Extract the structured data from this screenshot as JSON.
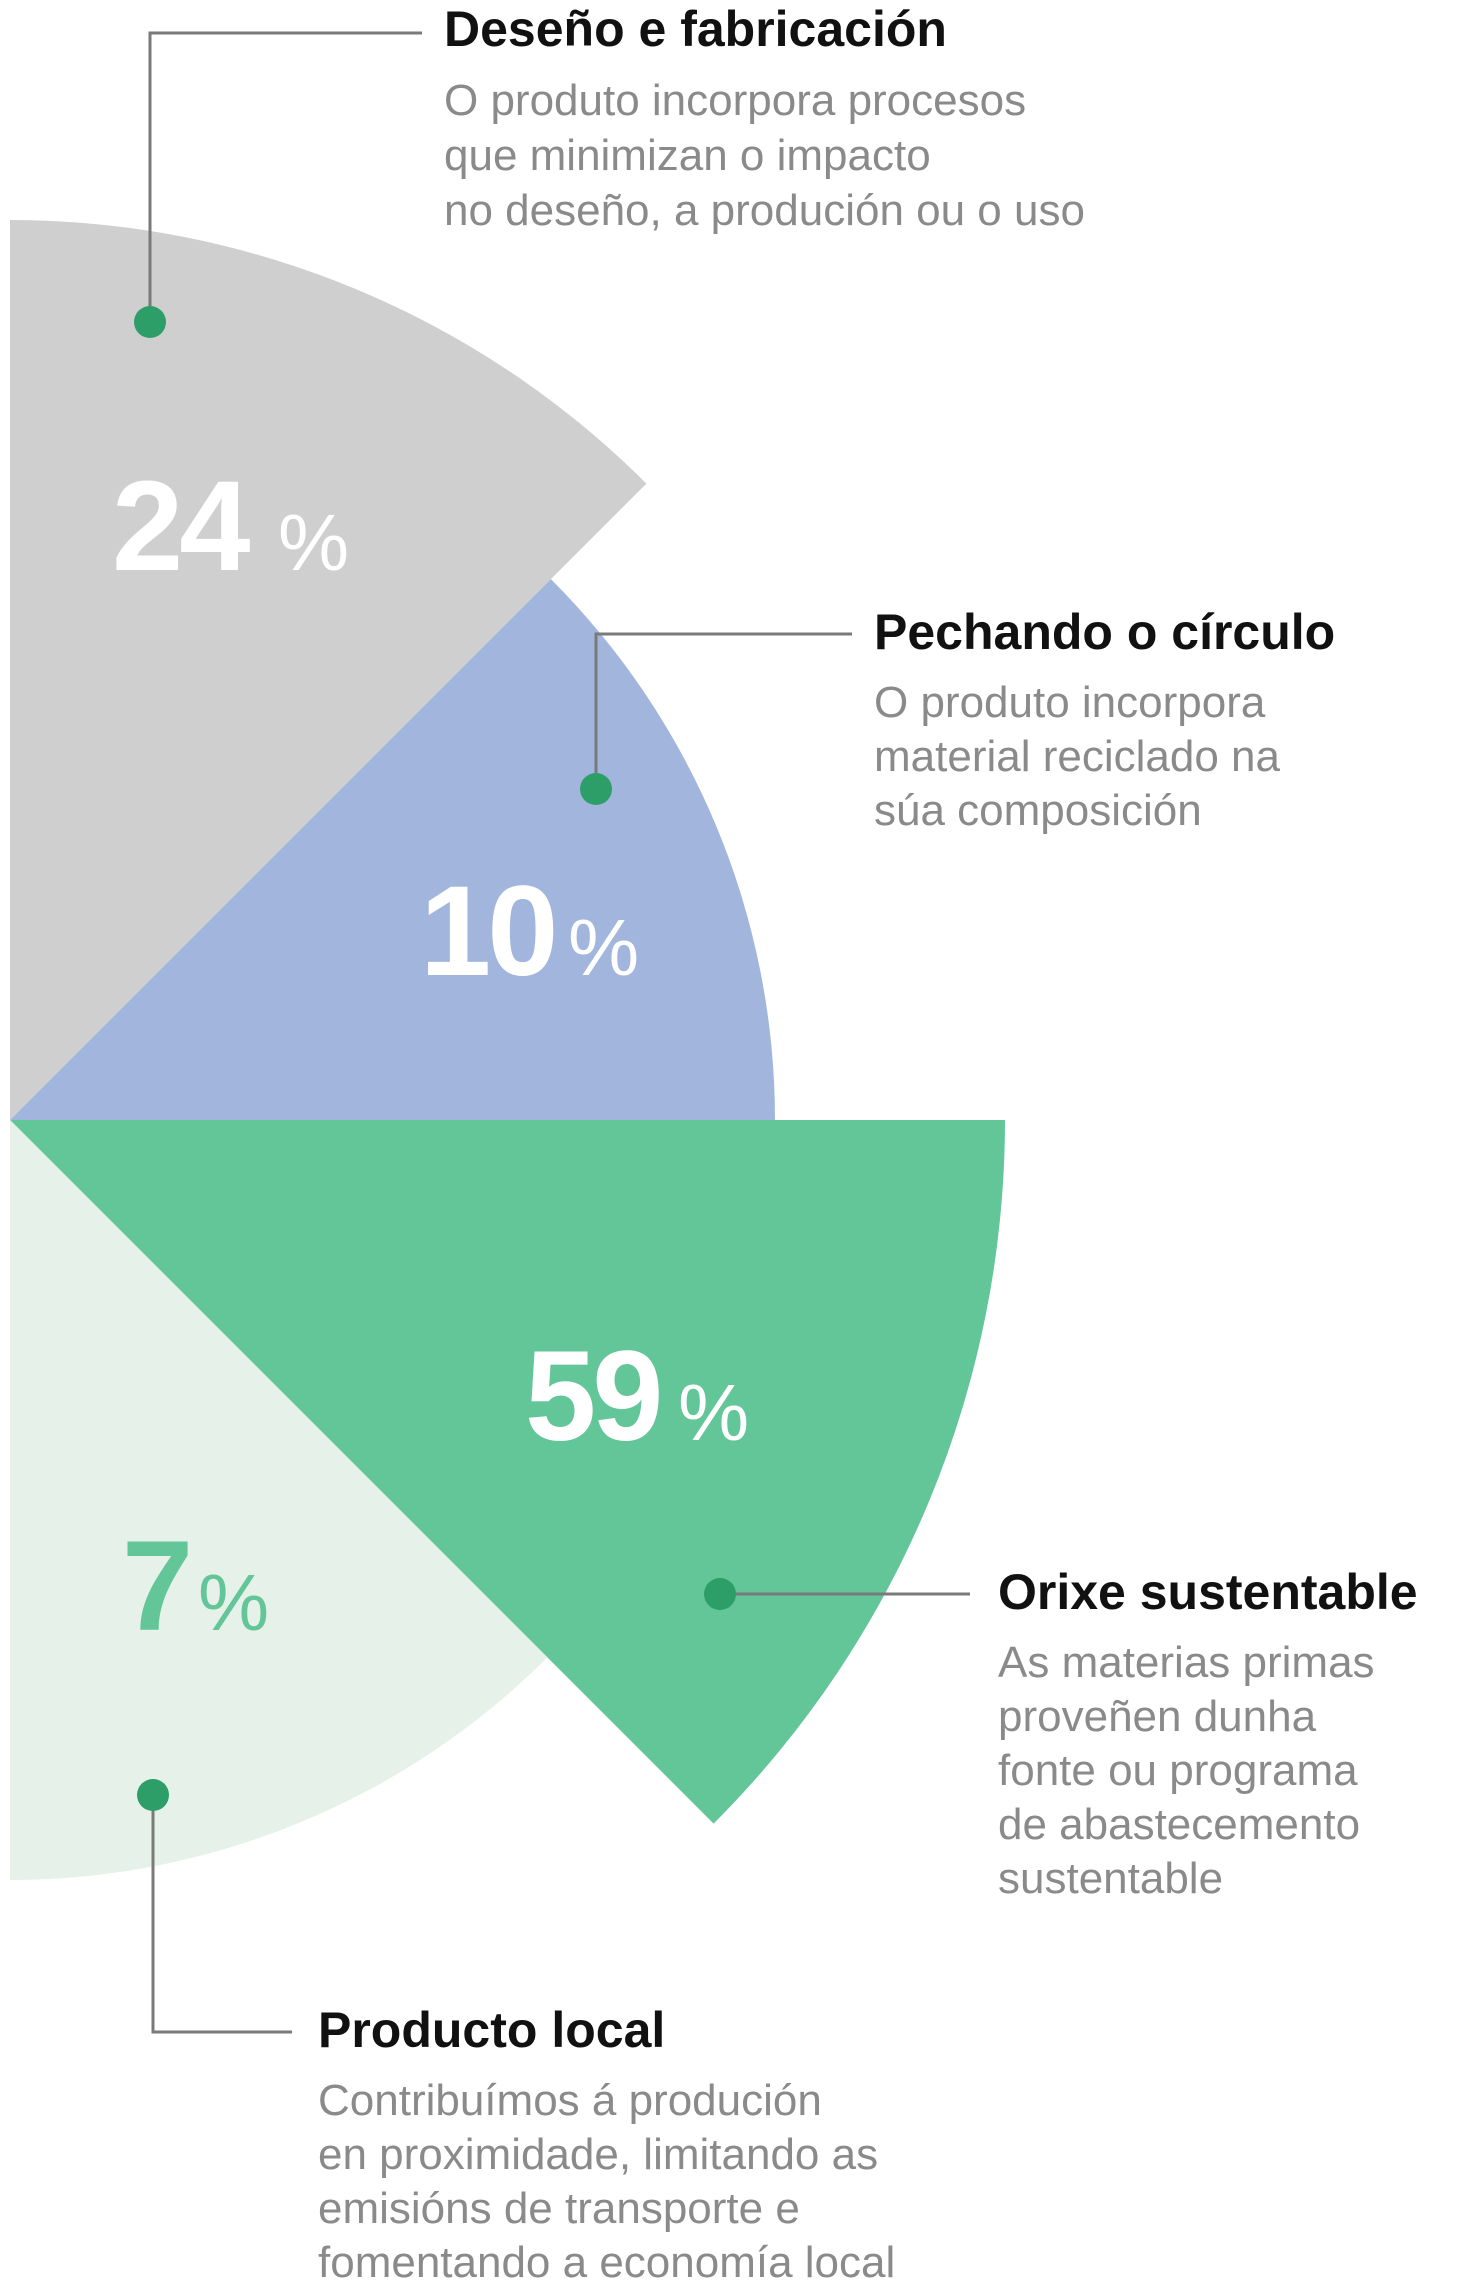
{
  "chart_data": {
    "type": "pie",
    "variant": "rose (polar area)",
    "categories": [
      "Deseño e fabricación",
      "Pechando o círculo",
      "Orixe sustentable",
      "Producto local"
    ],
    "values": [
      24,
      10,
      59,
      7
    ],
    "unit": "%",
    "slices": [
      {
        "key": "design",
        "title": "Deseño e fabricación",
        "description": [
          "O produto incorpora procesos",
          "que minimizan o impacto",
          "no deseño, a produción ou o uso"
        ],
        "value": 24,
        "value_text": "24",
        "color": "#cfcfcf",
        "value_color": "#ffffff"
      },
      {
        "key": "circle",
        "title": "Pechando o círculo",
        "description": [
          "O produto incorpora",
          "material reciclado na",
          "súa composición"
        ],
        "value": 10,
        "value_text": "10",
        "color": "#a1b5dd",
        "value_color": "#ffffff"
      },
      {
        "key": "origin",
        "title": "Orixe sustentable",
        "description": [
          "As materias primas",
          "proveñen dunha",
          "fonte ou programa",
          "de abastecemento",
          "sustentable"
        ],
        "value": 59,
        "value_text": "59",
        "color": "#63c698",
        "value_color": "#ffffff"
      },
      {
        "key": "local",
        "title": "Producto local",
        "description": [
          "Contribuímos á produción",
          "en proximidade, limitando as",
          "emisións de transporte e",
          "fomentando a economía local"
        ],
        "value": 7,
        "value_text": "7",
        "color": "#e6f1ea",
        "value_color": "#63c698"
      }
    ],
    "percent_sign": "%",
    "marker_color": "#2e9e68"
  }
}
